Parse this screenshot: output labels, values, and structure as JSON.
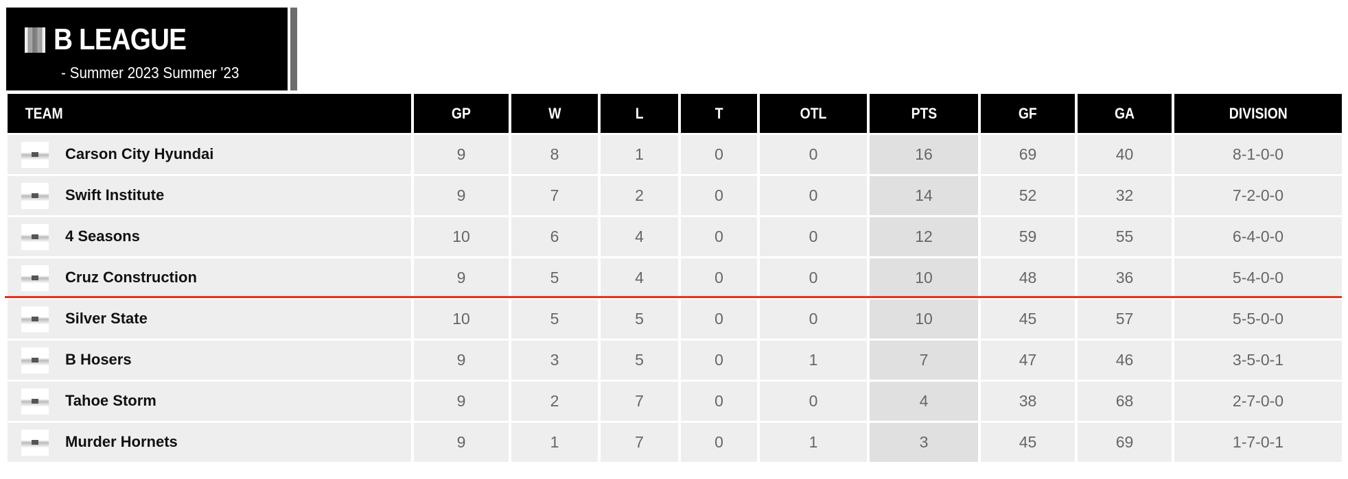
{
  "header": {
    "title": "B LEAGUE",
    "subtitle": "- Summer 2023 Summer '23",
    "logo_icon": "league-logo"
  },
  "accent": {
    "cutoff_line": "#e8321f"
  },
  "table": {
    "columns": [
      "TEAM",
      "GP",
      "W",
      "L",
      "T",
      "OTL",
      "PTS",
      "GF",
      "GA",
      "DIVISION"
    ],
    "rows": [
      [
        "Carson City Hyundai",
        "9",
        "8",
        "1",
        "0",
        "0",
        "16",
        "69",
        "40",
        "8-1-0-0"
      ],
      [
        "Swift Institute",
        "9",
        "7",
        "2",
        "0",
        "0",
        "14",
        "52",
        "32",
        "7-2-0-0"
      ],
      [
        "4 Seasons",
        "10",
        "6",
        "4",
        "0",
        "0",
        "12",
        "59",
        "55",
        "6-4-0-0"
      ],
      [
        "Cruz Construction",
        "9",
        "5",
        "4",
        "0",
        "0",
        "10",
        "48",
        "36",
        "5-4-0-0"
      ],
      [
        "Silver State",
        "10",
        "5",
        "5",
        "0",
        "0",
        "10",
        "45",
        "57",
        "5-5-0-0"
      ],
      [
        "B Hosers",
        "9",
        "3",
        "5",
        "0",
        "1",
        "7",
        "47",
        "46",
        "3-5-0-1"
      ],
      [
        "Tahoe Storm",
        "9",
        "2",
        "7",
        "0",
        "0",
        "4",
        "38",
        "68",
        "2-7-0-0"
      ],
      [
        "Murder Hornets",
        "9",
        "1",
        "7",
        "0",
        "1",
        "3",
        "45",
        "69",
        "1-7-0-1"
      ]
    ]
  }
}
